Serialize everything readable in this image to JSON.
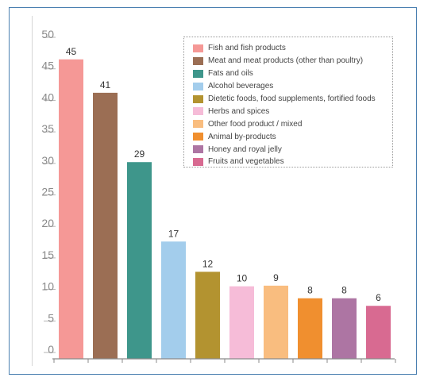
{
  "chart_data": {
    "type": "bar",
    "title": "",
    "xlabel": "",
    "ylabel": "",
    "ylim": [
      0,
      50
    ],
    "yticks": [
      0,
      5,
      10,
      15,
      20,
      25,
      30,
      35,
      40,
      45,
      50
    ],
    "grid": false,
    "legend_position": "top-right",
    "categories": [
      "Fish and fish products",
      "Meat and meat products (other than poultry)",
      "Fats and oils",
      "Alcohol beverages",
      "Dietetic foods, food supplements, fortified foods",
      "Herbs and spices",
      "Other food product / mixed",
      "Animal by-products",
      "Honey and royal jelly",
      "Fruits and vegetables"
    ],
    "values": [
      45,
      41,
      29,
      17,
      12,
      10,
      9,
      8,
      8,
      6
    ],
    "bar_heights_read": [
      46.5,
      41.2,
      30.2,
      17.6,
      12.8,
      10.5,
      10.6,
      8.6,
      8.6,
      7.4
    ],
    "colors": [
      "#f59896",
      "#9b6e54",
      "#3e968b",
      "#a3cdec",
      "#b39330",
      "#f6bcd8",
      "#f9bd7f",
      "#f08f2f",
      "#ad75a3",
      "#d86a91"
    ]
  }
}
